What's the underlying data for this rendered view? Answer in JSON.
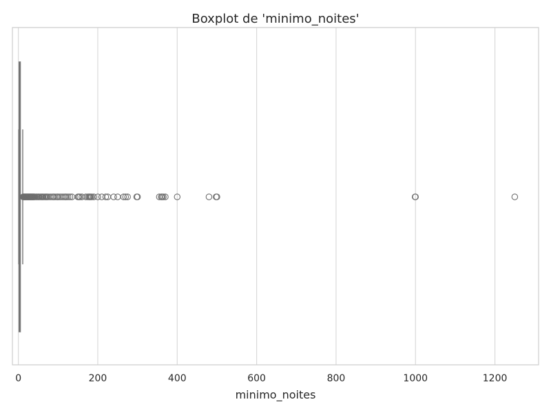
{
  "chart_data": {
    "type": "boxplot",
    "title": "Boxplot de 'minimo_noites'",
    "xlabel": "minimo_noites",
    "ylabel": "",
    "orientation": "horizontal",
    "xlim": [
      -15,
      1310
    ],
    "xticks": [
      0,
      200,
      400,
      600,
      800,
      1000,
      1200
    ],
    "grid": true,
    "box": {
      "q1": 2,
      "median": 3,
      "q3": 5,
      "whisker_low": 1,
      "whisker_high": 11
    },
    "outliers": [
      12,
      13,
      14,
      15,
      16,
      17,
      18,
      19,
      20,
      21,
      22,
      23,
      24,
      25,
      26,
      27,
      28,
      29,
      30,
      31,
      32,
      33,
      34,
      35,
      36,
      37,
      38,
      39,
      40,
      42,
      45,
      47,
      50,
      52,
      55,
      58,
      60,
      62,
      65,
      68,
      70,
      72,
      75,
      80,
      85,
      89,
      90,
      95,
      99,
      100,
      105,
      110,
      115,
      119,
      120,
      125,
      130,
      135,
      150,
      152,
      155,
      160,
      170,
      175,
      178,
      180,
      182,
      185,
      190,
      200,
      210,
      220,
      225,
      240,
      250,
      265,
      270,
      275,
      298,
      300,
      355,
      360,
      362,
      365,
      370,
      400,
      480,
      498,
      500,
      999,
      1000,
      1250
    ],
    "colors": {
      "box": "#808080",
      "grid": "#d9d9d9",
      "frame": "#cccccc"
    }
  }
}
